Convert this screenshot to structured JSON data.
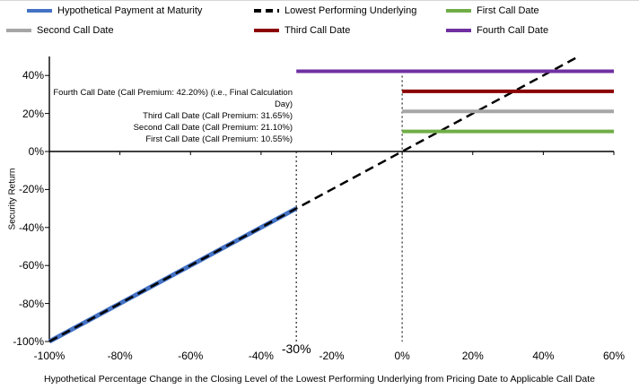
{
  "legend": {
    "rows": [
      [
        {
          "label": "Hypothetical Payment at Maturity",
          "color": "#4472C4",
          "dash": false
        },
        {
          "label": "Lowest Performing Underlying",
          "color": "#000000",
          "dash": true
        },
        {
          "label": "First Call Date",
          "color": "#70AD47",
          "dash": false
        }
      ],
      [
        {
          "label": "Second Call Date",
          "color": "#A6A6A6",
          "dash": false
        },
        {
          "label": "Third Call Date",
          "color": "#8B0000",
          "dash": false
        },
        {
          "label": "Fourth Call Date",
          "color": "#7030A0",
          "dash": false
        }
      ]
    ]
  },
  "chart_data": {
    "type": "line",
    "title": "",
    "xlabel": "Hypothetical Percentage Change in the Closing Level of the Lowest Performing Underlying from Pricing Date to Applicable Call Date",
    "ylabel": "Security Return",
    "xlim": [
      -100,
      60
    ],
    "ylim": [
      -100,
      50
    ],
    "grid": false,
    "legend_position": "top",
    "x_ticks": [
      {
        "v": -100,
        "label": "-100%"
      },
      {
        "v": -80,
        "label": "-80%"
      },
      {
        "v": -60,
        "label": "-60%"
      },
      {
        "v": -40,
        "label": "-40%"
      },
      {
        "v": -20,
        "label": "-20%"
      },
      {
        "v": 0,
        "label": "0%"
      },
      {
        "v": 20,
        "label": "20%"
      },
      {
        "v": 40,
        "label": "40%"
      },
      {
        "v": 60,
        "label": "60%"
      }
    ],
    "y_ticks": [
      {
        "v": 40,
        "label": "40%"
      },
      {
        "v": 20,
        "label": "20%"
      },
      {
        "v": 0,
        "label": "0%"
      },
      {
        "v": -20,
        "label": "-20%"
      },
      {
        "v": -40,
        "label": "-40%"
      },
      {
        "v": -60,
        "label": "-60%"
      },
      {
        "v": -80,
        "label": "-80%"
      },
      {
        "v": -100,
        "label": "-100%"
      }
    ],
    "series": [
      {
        "name": "Hypothetical Payment at Maturity",
        "color": "#4472C4",
        "style": "solid",
        "width": 5,
        "points": [
          [
            -100,
            -100
          ],
          [
            -30,
            -30
          ]
        ]
      },
      {
        "name": "Lowest Performing Underlying",
        "color": "#000000",
        "style": "dashed",
        "width": 2.5,
        "points": [
          [
            -100,
            -100
          ],
          [
            50,
            50
          ]
        ]
      },
      {
        "name": "First Call Date",
        "color": "#70AD47",
        "style": "solid",
        "width": 4,
        "points": [
          [
            0,
            10.55
          ],
          [
            60,
            10.55
          ]
        ]
      },
      {
        "name": "Second Call Date",
        "color": "#A6A6A6",
        "style": "solid",
        "width": 4,
        "points": [
          [
            0,
            21.1
          ],
          [
            60,
            21.1
          ]
        ]
      },
      {
        "name": "Third Call Date",
        "color": "#8B0000",
        "style": "solid",
        "width": 4,
        "points": [
          [
            0,
            31.65
          ],
          [
            60,
            31.65
          ]
        ]
      },
      {
        "name": "Fourth Call Date",
        "color": "#7030A0",
        "style": "solid",
        "width": 4,
        "points": [
          [
            -30,
            42.2
          ],
          [
            60,
            42.2
          ]
        ]
      }
    ],
    "reference_lines": [
      {
        "x": -30,
        "y_from": 0,
        "y_to": -100
      },
      {
        "x": 0,
        "y_from": 42.2,
        "y_to": -100
      }
    ],
    "annotations": [
      {
        "name": "fourth-call-annotation",
        "lines": [
          "Fourth Call Date (Call Premium: 42.20%) (i.e., Final Calculation",
          "Day)"
        ]
      },
      {
        "name": "third-call-annotation",
        "lines": [
          "Third Call Date (Call Premium: 31.65%)"
        ]
      },
      {
        "name": "second-call-annotation",
        "lines": [
          "Second Call Date (Call Premium: 21.10%)"
        ]
      },
      {
        "name": "first-call-annotation",
        "lines": [
          "First Call Date (Call Premium: 10.55%)"
        ]
      }
    ],
    "x_axis_callout": {
      "x": -30,
      "label": "-30%"
    }
  }
}
